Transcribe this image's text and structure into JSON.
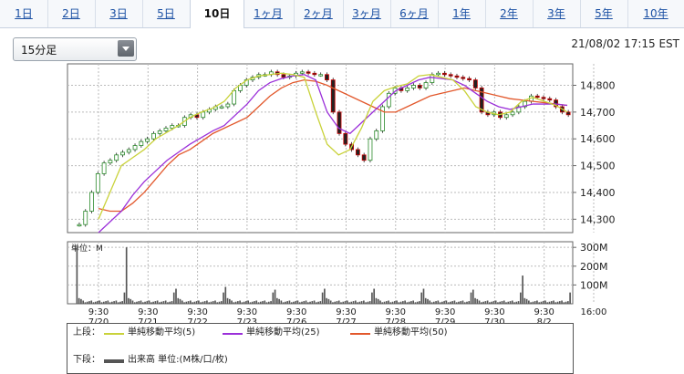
{
  "tabs": [
    {
      "label": "1日",
      "active": false
    },
    {
      "label": "2日",
      "active": false
    },
    {
      "label": "3日",
      "active": false
    },
    {
      "label": "5日",
      "active": false
    },
    {
      "label": "10日",
      "active": true
    },
    {
      "label": "1ヶ月",
      "active": false
    },
    {
      "label": "2ヶ月",
      "active": false
    },
    {
      "label": "3ヶ月",
      "active": false
    },
    {
      "label": "6ヶ月",
      "active": false
    },
    {
      "label": "1年",
      "active": false
    },
    {
      "label": "2年",
      "active": false
    },
    {
      "label": "3年",
      "active": false
    },
    {
      "label": "5年",
      "active": false
    },
    {
      "label": "10年",
      "active": false
    }
  ],
  "interval_select": {
    "value": "15分足"
  },
  "timestamp": "21/08/02 17:15 EST",
  "legend": {
    "upper_label": "上段：",
    "lower_label": "下段：",
    "items": [
      {
        "label": "単純移動平均(5)",
        "color": "#c9d23a"
      },
      {
        "label": "単純移動平均(25)",
        "color": "#9b30d9"
      },
      {
        "label": "単純移動平均(50)",
        "color": "#e2582c"
      }
    ],
    "volume_label": "出来高 単位:(M株/口/枚)",
    "volume_color": "#555555"
  },
  "chart_data": {
    "type": "candlestick",
    "x_tick_labels": [
      {
        "time": "9:30",
        "date": "7/20"
      },
      {
        "time": "9:30",
        "date": "7/21"
      },
      {
        "time": "9:30",
        "date": "7/22"
      },
      {
        "time": "9:30",
        "date": "7/23"
      },
      {
        "time": "9:30",
        "date": "7/26"
      },
      {
        "time": "9:30",
        "date": "7/27"
      },
      {
        "time": "9:30",
        "date": "7/28"
      },
      {
        "time": "9:30",
        "date": "7/29"
      },
      {
        "time": "9:30",
        "date": "7/30"
      },
      {
        "time": "9:30",
        "date": "8/2"
      },
      {
        "time": "16:00",
        "date": ""
      }
    ],
    "price_ticks": [
      "14,300",
      "14,400",
      "14,500",
      "14,600",
      "14,700",
      "14,800"
    ],
    "price_ylim": [
      14250,
      14880
    ],
    "price_path": [
      {
        "session": "7/20",
        "points": [
          14280,
          14330,
          14400,
          14470,
          14510,
          14520,
          14540,
          14550
        ]
      },
      {
        "session": "7/21",
        "points": [
          14560,
          14575,
          14590,
          14600,
          14620,
          14630,
          14640,
          14650
        ]
      },
      {
        "session": "7/22",
        "points": [
          14650,
          14680,
          14690,
          14680,
          14700,
          14710,
          14720,
          14720
        ]
      },
      {
        "session": "7/23",
        "points": [
          14730,
          14780,
          14800,
          14820,
          14830,
          14840,
          14840,
          14850
        ]
      },
      {
        "session": "7/26",
        "points": [
          14840,
          14830,
          14835,
          14845,
          14850,
          14845,
          14840,
          14840
        ]
      },
      {
        "session": "7/27",
        "points": [
          14820,
          14700,
          14620,
          14580,
          14560,
          14540,
          14520,
          14600
        ]
      },
      {
        "session": "7/28",
        "points": [
          14630,
          14720,
          14770,
          14790,
          14780,
          14790,
          14800,
          14790
        ]
      },
      {
        "session": "7/29",
        "points": [
          14810,
          14840,
          14845,
          14840,
          14835,
          14830,
          14825,
          14820
        ]
      },
      {
        "session": "7/30",
        "points": [
          14790,
          14700,
          14690,
          14700,
          14680,
          14690,
          14700,
          14720
        ]
      },
      {
        "session": "8/2",
        "points": [
          14740,
          14760,
          14755,
          14750,
          14745,
          14720,
          14700,
          14690
        ]
      }
    ],
    "sma5": [
      14300,
      14400,
      14500,
      14530,
      14560,
      14600,
      14625,
      14650,
      14680,
      14700,
      14715,
      14740,
      14790,
      14820,
      14835,
      14840,
      14845,
      14840,
      14830,
      14700,
      14580,
      14540,
      14560,
      14640,
      14740,
      14780,
      14795,
      14805,
      14835,
      14840,
      14830,
      14820,
      14780,
      14720,
      14700,
      14690,
      14700,
      14740,
      14755,
      14740,
      14725,
      14700
    ],
    "sma25": [
      14250,
      14290,
      14330,
      14390,
      14440,
      14480,
      14520,
      14550,
      14580,
      14605,
      14630,
      14650,
      14690,
      14730,
      14780,
      14810,
      14825,
      14835,
      14840,
      14820,
      14700,
      14640,
      14620,
      14660,
      14700,
      14740,
      14780,
      14800,
      14820,
      14830,
      14825,
      14820,
      14800,
      14770,
      14740,
      14720,
      14710,
      14720,
      14730,
      14730,
      14730,
      14725
    ],
    "sma50": [
      14340,
      14330,
      14330,
      14360,
      14400,
      14450,
      14500,
      14540,
      14560,
      14590,
      14620,
      14640,
      14660,
      14680,
      14720,
      14760,
      14790,
      14810,
      14820,
      14815,
      14800,
      14780,
      14760,
      14740,
      14720,
      14700,
      14700,
      14720,
      14740,
      14760,
      14770,
      14780,
      14790,
      14780,
      14770,
      14760,
      14750,
      14745,
      14740,
      14735,
      14730,
      14725
    ],
    "volume_ticks": [
      "100M",
      "200M",
      "300M"
    ],
    "volume_ylim": [
      0,
      330
    ],
    "volume_unit_label": "単位：M",
    "volume_sessions": [
      {
        "session": "7/20",
        "spike": 300
      },
      {
        "session": "7/21",
        "spike": 300
      },
      {
        "session": "7/22",
        "spike": 80
      },
      {
        "session": "7/23",
        "spike": 90
      },
      {
        "session": "7/26",
        "spike": 75
      },
      {
        "session": "7/27",
        "spike": 80
      },
      {
        "session": "7/28",
        "spike": 80
      },
      {
        "session": "7/29",
        "spike": 80
      },
      {
        "session": "7/30",
        "spike": 75
      },
      {
        "session": "8/2",
        "spike": 150
      }
    ],
    "grid": true
  }
}
